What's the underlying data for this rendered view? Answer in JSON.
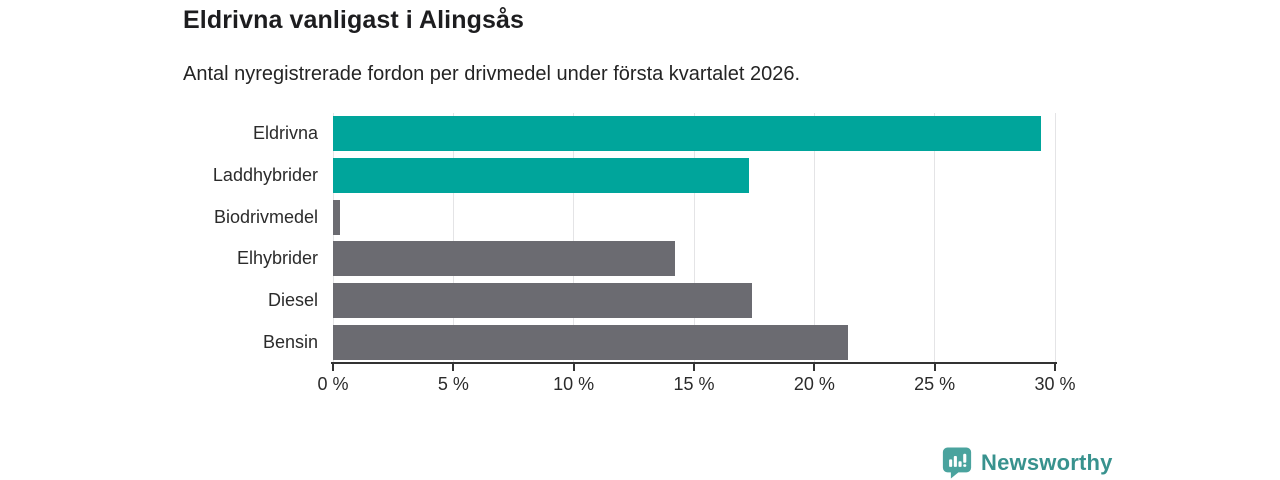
{
  "header": {
    "title": "Eldrivna vanligast i Alingsås",
    "subtitle": "Antal nyregistrerade fordon per drivmedel under första kvartalet 2026."
  },
  "chart_data": {
    "type": "bar",
    "orientation": "horizontal",
    "title": "Eldrivna vanligast i Alingsås",
    "subtitle": "Antal nyregistrerade fordon per drivmedel under första kvartalet 2026.",
    "categories": [
      "Eldrivna",
      "Laddhybrider",
      "Biodrivmedel",
      "Elhybrider",
      "Diesel",
      "Bensin"
    ],
    "values": [
      29.4,
      17.3,
      0.3,
      14.2,
      17.4,
      21.4
    ],
    "unit": "%",
    "bar_colors": [
      "#00a59b",
      "#00a59b",
      "#6b6b71",
      "#6b6b71",
      "#6b6b71",
      "#6b6b71"
    ],
    "xlim": [
      0,
      30
    ],
    "x_ticks": [
      0,
      5,
      10,
      15,
      20,
      25,
      30
    ],
    "x_tick_labels": [
      "0 %",
      "5 %",
      "10 %",
      "15 %",
      "20 %",
      "25 %",
      "30 %"
    ],
    "grid": "vertical-gridlines-on",
    "legend": "none"
  },
  "colors": {
    "accent_teal": "#00a59b",
    "neutral_gray": "#6b6b71",
    "gridline": "#e4e4e6",
    "axis": "#333333"
  },
  "logo": {
    "text": "Newsworthy",
    "icon": "bar-chart-speech-bubble",
    "text_color": "#38928e",
    "icon_color": "#4aa39e"
  }
}
